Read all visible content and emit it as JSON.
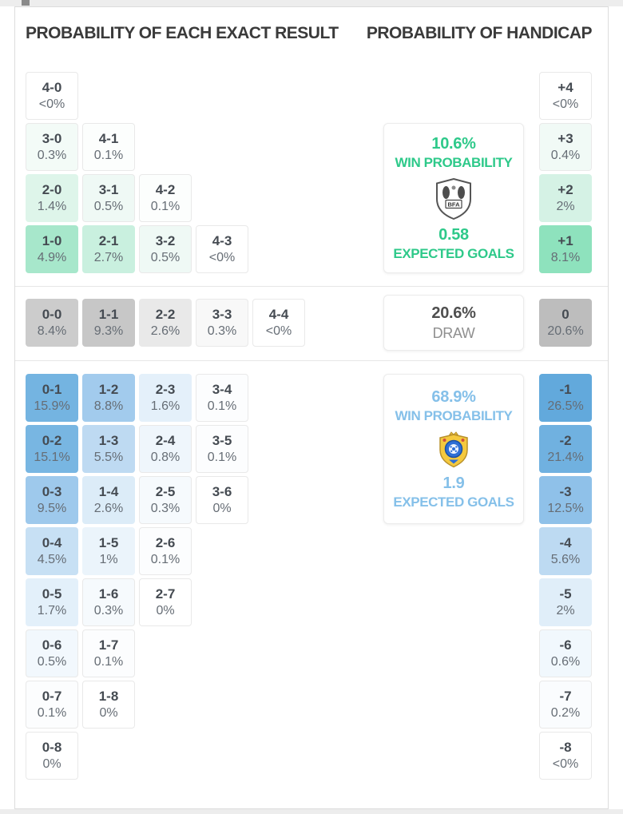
{
  "headers": {
    "left": "PROBABILITY OF EACH EXACT RESULT",
    "right": "PROBABILITY OF HANDICAP"
  },
  "accents": {
    "home": "#2ec98a",
    "away": "#85c0e9"
  },
  "chart_data": {
    "type": "heatmap",
    "title": "PROBABILITY OF EACH EXACT RESULT",
    "subtitle": "PROBABILITY OF HANDICAP",
    "home": {
      "rows": [
        [
          {
            "score": "4-0",
            "pct": "<0%",
            "bg": "#ffffff"
          }
        ],
        [
          {
            "score": "3-0",
            "pct": "0.3%",
            "bg": "#f3fbf7"
          },
          {
            "score": "4-1",
            "pct": "0.1%",
            "bg": "#fcfefd"
          }
        ],
        [
          {
            "score": "2-0",
            "pct": "1.4%",
            "bg": "#def5ea"
          },
          {
            "score": "3-1",
            "pct": "0.5%",
            "bg": "#eff9f5"
          },
          {
            "score": "4-2",
            "pct": "0.1%",
            "bg": "#fcfefd"
          }
        ],
        [
          {
            "score": "1-0",
            "pct": "4.9%",
            "bg": "#a7e7cb"
          },
          {
            "score": "2-1",
            "pct": "2.7%",
            "bg": "#c9f0df"
          },
          {
            "score": "3-2",
            "pct": "0.5%",
            "bg": "#eff9f5"
          },
          {
            "score": "4-3",
            "pct": "<0%",
            "bg": "#ffffff"
          }
        ]
      ]
    },
    "draw": {
      "cells": [
        {
          "score": "0-0",
          "pct": "8.4%",
          "bg": "#cccccc"
        },
        {
          "score": "1-1",
          "pct": "9.3%",
          "bg": "#c7c7c7"
        },
        {
          "score": "2-2",
          "pct": "2.6%",
          "bg": "#e9e9e9"
        },
        {
          "score": "3-3",
          "pct": "0.3%",
          "bg": "#f8f8f8"
        },
        {
          "score": "4-4",
          "pct": "<0%",
          "bg": "#ffffff"
        }
      ]
    },
    "away": {
      "rows": [
        [
          {
            "score": "0-1",
            "pct": "15.9%",
            "bg": "#74b4e1"
          },
          {
            "score": "1-2",
            "pct": "8.8%",
            "bg": "#a2cbed"
          },
          {
            "score": "2-3",
            "pct": "1.6%",
            "bg": "#e4f0fa"
          },
          {
            "score": "3-4",
            "pct": "0.1%",
            "bg": "#fcfdfe"
          }
        ],
        [
          {
            "score": "0-2",
            "pct": "15.1%",
            "bg": "#78b6e2"
          },
          {
            "score": "1-3",
            "pct": "5.5%",
            "bg": "#bedaf2"
          },
          {
            "score": "2-4",
            "pct": "0.8%",
            "bg": "#eff6fc"
          },
          {
            "score": "3-5",
            "pct": "0.1%",
            "bg": "#fcfdfe"
          }
        ],
        [
          {
            "score": "0-3",
            "pct": "9.5%",
            "bg": "#9ec9ec"
          },
          {
            "score": "1-4",
            "pct": "2.6%",
            "bg": "#dcecf8"
          },
          {
            "score": "2-5",
            "pct": "0.3%",
            "bg": "#f6fafd"
          },
          {
            "score": "3-6",
            "pct": "0%",
            "bg": "#ffffff"
          }
        ],
        [
          {
            "score": "0-4",
            "pct": "4.5%",
            "bg": "#c7e0f4"
          },
          {
            "score": "1-5",
            "pct": "1%",
            "bg": "#ebf4fb"
          },
          {
            "score": "2-6",
            "pct": "0.1%",
            "bg": "#fcfdfe"
          }
        ],
        [
          {
            "score": "0-5",
            "pct": "1.7%",
            "bg": "#e3f0fa"
          },
          {
            "score": "1-6",
            "pct": "0.3%",
            "bg": "#f6fafd"
          },
          {
            "score": "2-7",
            "pct": "0%",
            "bg": "#ffffff"
          }
        ],
        [
          {
            "score": "0-6",
            "pct": "0.5%",
            "bg": "#f2f8fd"
          },
          {
            "score": "1-7",
            "pct": "0.1%",
            "bg": "#fcfdfe"
          }
        ],
        [
          {
            "score": "0-7",
            "pct": "0.1%",
            "bg": "#fcfdfe"
          },
          {
            "score": "1-8",
            "pct": "0%",
            "bg": "#ffffff"
          }
        ],
        [
          {
            "score": "0-8",
            "pct": "0%",
            "bg": "#ffffff"
          }
        ]
      ]
    },
    "handicap": {
      "home": [
        {
          "line": "+4",
          "pct": "<0%",
          "bg": "#ffffff"
        },
        {
          "line": "+3",
          "pct": "0.4%",
          "bg": "#f1faf6"
        },
        {
          "line": "+2",
          "pct": "2%",
          "bg": "#d5f2e5"
        },
        {
          "line": "+1",
          "pct": "8.1%",
          "bg": "#8ee2bd"
        }
      ],
      "draw": {
        "line": "0",
        "pct": "20.6%",
        "bg": "#bdbdbd"
      },
      "away": [
        {
          "line": "-1",
          "pct": "26.5%",
          "bg": "#62a9dc"
        },
        {
          "line": "-2",
          "pct": "21.4%",
          "bg": "#70b1e0"
        },
        {
          "line": "-3",
          "pct": "12.5%",
          "bg": "#8fc1e9"
        },
        {
          "line": "-4",
          "pct": "5.6%",
          "bg": "#bddaf2"
        },
        {
          "line": "-5",
          "pct": "2%",
          "bg": "#e0eef9"
        },
        {
          "line": "-6",
          "pct": "0.6%",
          "bg": "#f1f8fd"
        },
        {
          "line": "-7",
          "pct": "0.2%",
          "bg": "#fafcfe"
        },
        {
          "line": "-8",
          "pct": "<0%",
          "bg": "#ffffff"
        }
      ]
    },
    "summary": {
      "home": {
        "win_pct": "10.6%",
        "win_label": "WIN PROBABILITY",
        "badge_text": "BFA",
        "xg": "0.58",
        "xg_label": "EXPECTED GOALS"
      },
      "draw": {
        "pct": "20.6%",
        "label": "DRAW"
      },
      "away": {
        "win_pct": "68.9%",
        "win_label": "WIN PROBABILITY",
        "xg": "1.9",
        "xg_label": "EXPECTED GOALS"
      }
    }
  }
}
